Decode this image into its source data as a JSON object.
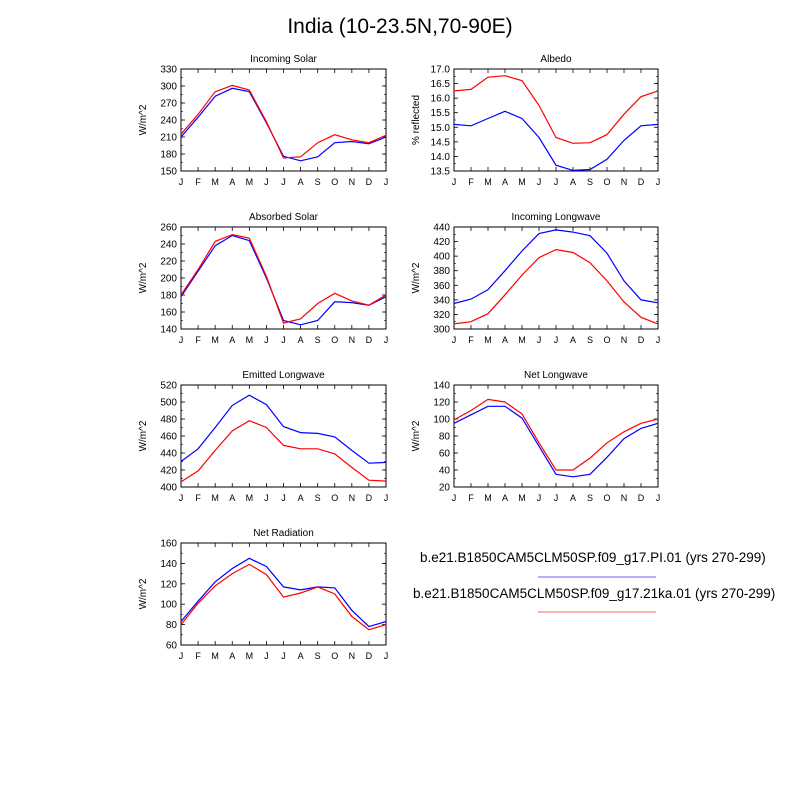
{
  "title": "India (10-23.5N,70-90E)",
  "colors": {
    "pi": "#0000ff",
    "ka21": "#ff0000"
  },
  "legend": [
    {
      "label": "b.e21.B1850CAM5CLM50SP.f09_g17.PI.01 (yrs 270-299)",
      "color": "#0000ff"
    },
    {
      "label": "b.e21.B1850CAM5CLM50SP.f09_g17.21ka.01 (yrs 270-299)",
      "color": "#ff0000"
    }
  ],
  "chart_data": [
    {
      "type": "line",
      "title": "Incoming Solar",
      "xlabel": "",
      "ylabel": "W/m^2",
      "categories": [
        "J",
        "F",
        "M",
        "A",
        "M",
        "J",
        "J",
        "A",
        "S",
        "O",
        "N",
        "D",
        "J"
      ],
      "ylim": [
        150,
        330
      ],
      "yticks": [
        150,
        180,
        210,
        240,
        270,
        300,
        330
      ],
      "series": [
        {
          "name": "b.e21.B1850CAM5CLM50SP.f09_g17.PI.01",
          "values": [
            210,
            245,
            282,
            296,
            290,
            235,
            176,
            168,
            175,
            200,
            202,
            198,
            210
          ]
        },
        {
          "name": "b.e21.B1850CAM5CLM50SP.f09_g17.21ka.01",
          "values": [
            215,
            250,
            290,
            301,
            293,
            237,
            173,
            175,
            200,
            214,
            205,
            200,
            213
          ]
        }
      ]
    },
    {
      "type": "line",
      "title": "Albedo",
      "xlabel": "",
      "ylabel": "% reflected",
      "categories": [
        "J",
        "F",
        "M",
        "A",
        "M",
        "J",
        "J",
        "A",
        "S",
        "O",
        "N",
        "D",
        "J"
      ],
      "ylim": [
        13.5,
        17.0
      ],
      "yticks": [
        13.5,
        14.0,
        14.5,
        15.0,
        15.5,
        16.0,
        16.5,
        17.0
      ],
      "series": [
        {
          "name": "b.e21.B1850CAM5CLM50SP.f09_g17.PI.01",
          "values": [
            15.1,
            15.05,
            15.3,
            15.55,
            15.3,
            14.65,
            13.7,
            13.52,
            13.55,
            13.9,
            14.55,
            15.05,
            15.1
          ]
        },
        {
          "name": "b.e21.B1850CAM5CLM50SP.f09_g17.21ka.01",
          "values": [
            16.25,
            16.3,
            16.72,
            16.77,
            16.6,
            15.75,
            14.65,
            14.45,
            14.47,
            14.75,
            15.45,
            16.05,
            16.25
          ]
        }
      ]
    },
    {
      "type": "line",
      "title": "Absorbed Solar",
      "xlabel": "",
      "ylabel": "W/m^2",
      "categories": [
        "J",
        "F",
        "M",
        "A",
        "M",
        "J",
        "J",
        "A",
        "S",
        "O",
        "N",
        "D",
        "J"
      ],
      "ylim": [
        140,
        260
      ],
      "yticks": [
        140,
        160,
        180,
        200,
        220,
        240,
        260
      ],
      "series": [
        {
          "name": "b.e21.B1850CAM5CLM50SP.f09_g17.PI.01",
          "values": [
            178,
            208,
            238,
            250,
            244,
            200,
            150,
            145,
            150,
            172,
            171,
            168,
            178
          ]
        },
        {
          "name": "b.e21.B1850CAM5CLM50SP.f09_g17.21ka.01",
          "values": [
            180,
            210,
            243,
            251,
            247,
            202,
            147,
            152,
            170,
            182,
            173,
            168,
            180
          ]
        }
      ]
    },
    {
      "type": "line",
      "title": "Incoming Longwave",
      "xlabel": "",
      "ylabel": "W/m^2",
      "categories": [
        "J",
        "F",
        "M",
        "A",
        "M",
        "J",
        "J",
        "A",
        "S",
        "O",
        "N",
        "D",
        "J"
      ],
      "ylim": [
        300,
        440
      ],
      "yticks": [
        300,
        320,
        340,
        360,
        380,
        400,
        420,
        440
      ],
      "series": [
        {
          "name": "b.e21.B1850CAM5CLM50SP.f09_g17.PI.01",
          "values": [
            335,
            341,
            354,
            380,
            407,
            431,
            436,
            433,
            428,
            404,
            366,
            340,
            336
          ]
        },
        {
          "name": "b.e21.B1850CAM5CLM50SP.f09_g17.21ka.01",
          "values": [
            307,
            310,
            321,
            347,
            374,
            398,
            409,
            405,
            391,
            366,
            337,
            316,
            307
          ]
        }
      ]
    },
    {
      "type": "line",
      "title": "Emitted Longwave",
      "xlabel": "",
      "ylabel": "W/m^2",
      "categories": [
        "J",
        "F",
        "M",
        "A",
        "M",
        "J",
        "J",
        "A",
        "S",
        "O",
        "N",
        "D",
        "J"
      ],
      "ylim": [
        400,
        520
      ],
      "yticks": [
        400,
        420,
        440,
        460,
        480,
        500,
        520
      ],
      "series": [
        {
          "name": "b.e21.B1850CAM5CLM50SP.f09_g17.PI.01",
          "values": [
            430,
            445,
            470,
            496,
            508,
            497,
            471,
            464,
            463,
            459,
            443,
            428,
            429
          ]
        },
        {
          "name": "b.e21.B1850CAM5CLM50SP.f09_g17.21ka.01",
          "values": [
            406,
            419,
            443,
            466,
            478,
            470,
            449,
            445,
            445,
            439,
            423,
            408,
            407
          ]
        }
      ]
    },
    {
      "type": "line",
      "title": "Net Longwave",
      "xlabel": "",
      "ylabel": "W/m^2",
      "categories": [
        "J",
        "F",
        "M",
        "A",
        "M",
        "J",
        "J",
        "A",
        "S",
        "O",
        "N",
        "D",
        "J"
      ],
      "ylim": [
        20,
        140
      ],
      "yticks": [
        20,
        40,
        60,
        80,
        100,
        120,
        140
      ],
      "series": [
        {
          "name": "b.e21.B1850CAM5CLM50SP.f09_g17.PI.01",
          "values": [
            95,
            105,
            115,
            115,
            101,
            68,
            35,
            32,
            35,
            55,
            77,
            89,
            95
          ]
        },
        {
          "name": "b.e21.B1850CAM5CLM50SP.f09_g17.21ka.01",
          "values": [
            99,
            110,
            123,
            120,
            106,
            72,
            40,
            40,
            54,
            72,
            85,
            95,
            100
          ]
        }
      ]
    },
    {
      "type": "line",
      "title": "Net Radiation",
      "xlabel": "",
      "ylabel": "W/m^2",
      "categories": [
        "J",
        "F",
        "M",
        "A",
        "M",
        "J",
        "J",
        "A",
        "S",
        "O",
        "N",
        "D",
        "J"
      ],
      "ylim": [
        60,
        160
      ],
      "yticks": [
        60,
        80,
        100,
        120,
        140,
        160
      ],
      "series": [
        {
          "name": "b.e21.B1850CAM5CLM50SP.f09_g17.PI.01",
          "values": [
            83,
            103,
            122,
            135,
            145,
            137,
            117,
            114,
            117,
            116,
            94,
            78,
            83
          ]
        },
        {
          "name": "b.e21.B1850CAM5CLM50SP.f09_g17.21ka.01",
          "values": [
            80,
            101,
            118,
            130,
            139,
            129,
            107,
            111,
            117,
            110,
            88,
            75,
            80
          ]
        }
      ]
    }
  ]
}
